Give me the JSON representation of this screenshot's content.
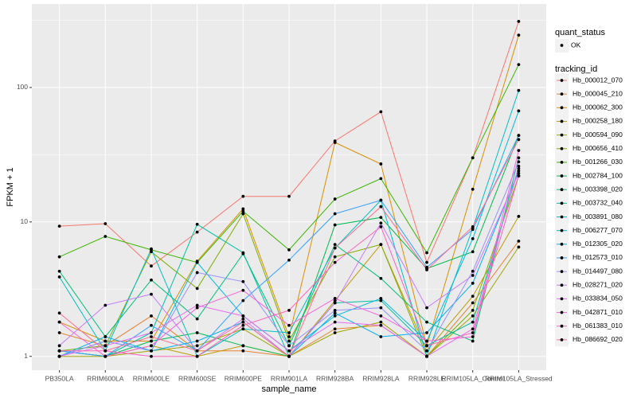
{
  "chart_data": {
    "type": "line",
    "xlabel": "sample_name",
    "ylabel": "FPKM + 1",
    "categories": [
      "PB350LA",
      "RRIM600LA",
      "RRIM600LE",
      "RRIM600SE",
      "RRIM600PE",
      "RRIM901LA",
      "RRIM928BA",
      "RRIM928LA",
      "RRIM928LE",
      "RRIM105LA_Control",
      "RRIM105LA_Stressed"
    ],
    "ylim": [
      0.79,
      418
    ],
    "yticks": [
      1,
      10,
      100
    ],
    "log_y": true,
    "grid": true,
    "point_color": "#000000",
    "point_legend": {
      "title": "quant_status",
      "entries": [
        "OK"
      ]
    },
    "legend_title": "tracking_id",
    "legend_position": "right",
    "series": [
      {
        "name": "Hb_000012_070",
        "color": "#F8766D",
        "values": [
          9.3,
          9.7,
          4.7,
          8.4,
          15.5,
          15.5,
          40,
          66,
          5,
          30,
          310
        ]
      },
      {
        "name": "Hb_000045_210",
        "color": "#EA8331",
        "values": [
          1.5,
          1.2,
          2.0,
          1.1,
          1.1,
          1.0,
          1.6,
          1.7,
          1.0,
          2.5,
          7.2
        ]
      },
      {
        "name": "Hb_000062_300",
        "color": "#D89000",
        "values": [
          1.8,
          1.3,
          1.3,
          5.1,
          12.5,
          1.4,
          39,
          27,
          1.2,
          17.5,
          245
        ]
      },
      {
        "name": "Hb_000258_180",
        "color": "#C09B00",
        "values": [
          1.1,
          1.0,
          1.2,
          1.0,
          1.2,
          1.0,
          2.6,
          6.8,
          1.1,
          2.8,
          11
        ]
      },
      {
        "name": "Hb_000594_090",
        "color": "#A3A500",
        "values": [
          1.0,
          1.0,
          1.1,
          1.2,
          1.6,
          1.0,
          1.5,
          1.8,
          1.0,
          2.0,
          6.5
        ]
      },
      {
        "name": "Hb_000656_410",
        "color": "#7CAE00",
        "values": [
          1.1,
          1.2,
          6.0,
          3.2,
          11.5,
          1.3,
          5.5,
          6.8,
          1.0,
          2.2,
          22
        ]
      },
      {
        "name": "Hb_001266_030",
        "color": "#39B600",
        "values": [
          5.5,
          7.8,
          6.2,
          5.0,
          12.0,
          6.2,
          14.8,
          21,
          5.9,
          30,
          148
        ]
      },
      {
        "name": "Hb_002784_100",
        "color": "#00BB4E",
        "values": [
          1.1,
          1.0,
          1.3,
          1.5,
          1.2,
          1.0,
          9.5,
          10.8,
          4.5,
          6.0,
          44
        ]
      },
      {
        "name": "Hb_003398_020",
        "color": "#00BF7D",
        "values": [
          4.3,
          1.4,
          3.7,
          1.9,
          5.8,
          1.2,
          6.8,
          3.8,
          1.8,
          1.3,
          30
        ]
      },
      {
        "name": "Hb_003732_040",
        "color": "#00C1A3",
        "values": [
          1.1,
          1.0,
          1.5,
          9.6,
          5.9,
          1.0,
          2.5,
          2.6,
          1.2,
          1.8,
          25
        ]
      },
      {
        "name": "Hb_003891_080",
        "color": "#00BFC4",
        "values": [
          3.9,
          1.1,
          6.3,
          1.0,
          1.6,
          1.5,
          6.4,
          14.5,
          1.0,
          9.0,
          95
        ]
      },
      {
        "name": "Hb_006277_070",
        "color": "#00BAE0",
        "values": [
          1.0,
          1.3,
          1.1,
          5.0,
          2.0,
          1.1,
          2.0,
          2.7,
          1.3,
          7.5,
          67
        ]
      },
      {
        "name": "Hb_012305_020",
        "color": "#00B0F6",
        "values": [
          1.0,
          1.4,
          1.1,
          1.3,
          1.8,
          1.0,
          2.1,
          1.4,
          1.5,
          3.5,
          24
        ]
      },
      {
        "name": "Hb_012573_010",
        "color": "#35A2FF",
        "values": [
          1.1,
          1.0,
          1.7,
          1.1,
          2.6,
          5.2,
          11.5,
          14.5,
          4.6,
          8.8,
          44
        ]
      },
      {
        "name": "Hb_014497_080",
        "color": "#9590FF",
        "values": [
          1.0,
          1.3,
          1.1,
          4.2,
          3.6,
          1.2,
          2.2,
          2.3,
          1.1,
          4.3,
          28
        ]
      },
      {
        "name": "Hb_028271_020",
        "color": "#C77CFF",
        "values": [
          1.2,
          2.4,
          2.9,
          1.1,
          1.9,
          1.0,
          2.5,
          9.8,
          2.3,
          4.0,
          23
        ]
      },
      {
        "name": "Hb_033834_050",
        "color": "#E76BF3",
        "values": [
          1.0,
          1.2,
          1.5,
          2.4,
          2.0,
          1.1,
          1.8,
          1.7,
          1.0,
          1.6,
          26
        ]
      },
      {
        "name": "Hb_042871_010",
        "color": "#FA62DB",
        "values": [
          1.8,
          1.0,
          1.2,
          2.3,
          3.1,
          1.7,
          2.7,
          2.0,
          1.3,
          1.4,
          34
        ]
      },
      {
        "name": "Hb_061383_010",
        "color": "#FF62BC",
        "values": [
          1.1,
          1.1,
          1.0,
          1.0,
          1.7,
          2.2,
          5.0,
          9.2,
          1.2,
          1.5,
          22
        ]
      },
      {
        "name": "Hb_086692_020",
        "color": "#FF6C91",
        "values": [
          2.1,
          1.1,
          1.4,
          1.1,
          1.8,
          1.0,
          6.4,
          13,
          4.4,
          9.2,
          41
        ]
      }
    ]
  }
}
